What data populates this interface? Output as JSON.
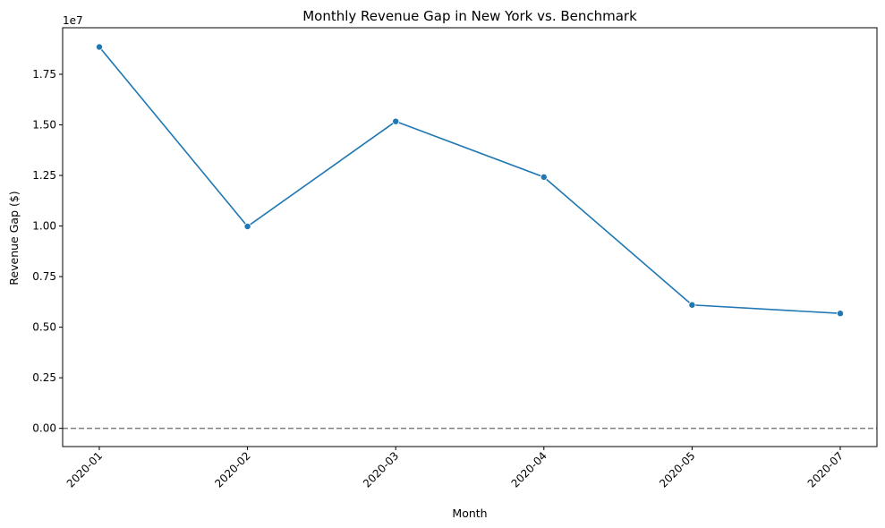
{
  "chart_data": {
    "type": "line",
    "title": "Monthly Revenue Gap in New York vs. Benchmark",
    "xlabel": "Month",
    "ylabel": "Revenue Gap ($)",
    "y_offset_label": "1e7",
    "categories": [
      "2020-01",
      "2020-02",
      "2020-03",
      "2020-04",
      "2020-05",
      "2020-07"
    ],
    "series": [
      {
        "values": [
          18850000,
          9980000,
          15170000,
          12420000,
          6100000,
          5680000
        ],
        "color": "#1f77b4"
      }
    ],
    "y_ticks": [
      0.0,
      0.25,
      0.5,
      0.75,
      1.0,
      1.25,
      1.5,
      1.75
    ],
    "y_tick_labels": [
      "0.00",
      "0.25",
      "0.50",
      "0.75",
      "1.00",
      "1.25",
      "1.50",
      "1.75"
    ],
    "ylim": [
      -900000,
      19800000
    ],
    "reference_line": {
      "y": 0,
      "color": "#808080",
      "style": "dashed"
    },
    "grid": false,
    "x_tick_rotation_deg": 45
  }
}
